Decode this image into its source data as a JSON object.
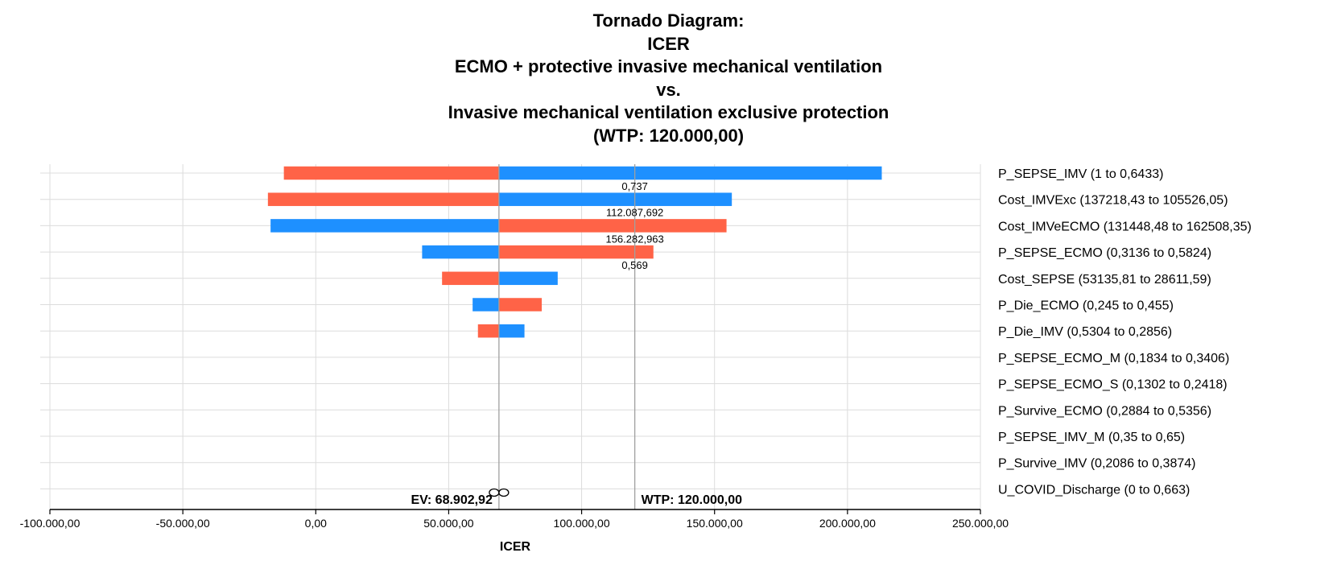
{
  "chart_data": {
    "type": "bar",
    "title": [
      "Tornado Diagram:",
      "ICER",
      "ECMO + protective invasive mechanical ventilation",
      "vs.",
      "Invasive mechanical ventilation exclusive protection",
      "(WTP: 120.000,00)"
    ],
    "xlabel": "ICER",
    "xlim": [
      -100000,
      250000
    ],
    "x_ticks": [
      -100000,
      -50000,
      0,
      50000,
      100000,
      150000,
      200000,
      250000
    ],
    "x_tick_labels": [
      "-100.000,00",
      "-50.000,00",
      "0,00",
      "50.000,00",
      "100.000,00",
      "150.000,00",
      "200.000,00",
      "250.000,00"
    ],
    "grid": true,
    "ev": {
      "value": 68902.92,
      "label": "EV: 68.902,92"
    },
    "wtp": {
      "value": 120000,
      "label": "WTP: 120.000,00"
    },
    "colors": {
      "low": "#ff6347",
      "high": "#1e90ff",
      "axis": "#000000",
      "grid": "#dcdcdc",
      "ref": "#a0a0a0"
    },
    "threshold_icon": "infinity-icon",
    "variables": [
      {
        "label": "P_SEPSE_IMV (1 to 0,6433)",
        "blue": [
          68902.92,
          212900
        ],
        "red": [
          -12000,
          68902.92
        ],
        "annotation": "0,737"
      },
      {
        "label": "Cost_IMVExc (137218,43 to 105526,05)",
        "blue": [
          68902.92,
          156500
        ],
        "red": [
          -18000,
          68902.92
        ],
        "annotation": "112.087,692"
      },
      {
        "label": "Cost_IMVeECMO (131448,48 to 162508,35)",
        "blue": [
          -17000,
          68902.92
        ],
        "red": [
          68902.92,
          154500
        ],
        "annotation": "156.282,963"
      },
      {
        "label": "P_SEPSE_ECMO (0,3136 to 0,5824)",
        "blue": [
          40000,
          68902.92
        ],
        "red": [
          68902.92,
          127000
        ],
        "annotation": "0,569"
      },
      {
        "label": "Cost_SEPSE (53135,81 to 28611,59)",
        "blue": [
          68902.92,
          91000
        ],
        "red": [
          47500,
          68902.92
        ],
        "annotation": ""
      },
      {
        "label": "P_Die_ECMO (0,245 to 0,455)",
        "blue": [
          59000,
          68902.92
        ],
        "red": [
          68902.92,
          85000
        ],
        "annotation": ""
      },
      {
        "label": "P_Die_IMV (0,5304 to 0,2856)",
        "blue": [
          68902.92,
          78500
        ],
        "red": [
          61000,
          68902.92
        ],
        "annotation": ""
      },
      {
        "label": "P_SEPSE_ECMO_M (0,1834 to 0,3406)",
        "blue": null,
        "red": null,
        "annotation": ""
      },
      {
        "label": "P_SEPSE_ECMO_S (0,1302 to 0,2418)",
        "blue": null,
        "red": null,
        "annotation": ""
      },
      {
        "label": "P_Survive_ECMO (0,2884 to 0,5356)",
        "blue": null,
        "red": null,
        "annotation": ""
      },
      {
        "label": "P_SEPSE_IMV_M (0,35 to 0,65)",
        "blue": null,
        "red": null,
        "annotation": ""
      },
      {
        "label": "P_Survive_IMV (0,2086 to 0,3874)",
        "blue": null,
        "red": null,
        "annotation": ""
      },
      {
        "label": "U_COVID_Discharge (0 to 0,663)",
        "blue": null,
        "red": null,
        "annotation": ""
      }
    ]
  }
}
